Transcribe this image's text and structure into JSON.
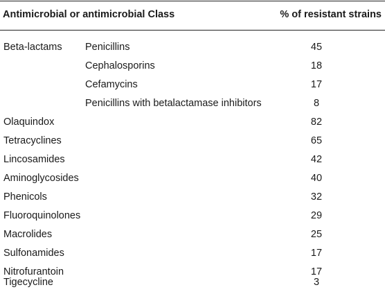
{
  "table": {
    "headers": {
      "class": "Antimicrobial or antimicrobial Class",
      "percent": "% of resistant strains"
    },
    "beta_lactams": {
      "group": "Beta-lactams",
      "rows": [
        {
          "sub": "Penicillins",
          "value": "45"
        },
        {
          "sub": "Cephalosporins",
          "value": "18"
        },
        {
          "sub": "Cefamycins",
          "value": "17"
        },
        {
          "sub": "Penicillins with betalactamase inhibitors",
          "value": "8"
        }
      ]
    },
    "rows": [
      {
        "name": "Olaquindox",
        "value": "82"
      },
      {
        "name": "Tetracyclines",
        "value": "65"
      },
      {
        "name": "Lincosamides",
        "value": "42"
      },
      {
        "name": "Aminoglycosides",
        "value": "40"
      },
      {
        "name": "Phenicols",
        "value": "32"
      },
      {
        "name": "Fluoroquinolones",
        "value": "29"
      },
      {
        "name": "Macrolides",
        "value": "25"
      },
      {
        "name": "Sulfonamides",
        "value": "17"
      },
      {
        "name": "Nitrofurantoin",
        "value": "17"
      },
      {
        "name": "Tigecycline",
        "value": "3"
      }
    ]
  }
}
